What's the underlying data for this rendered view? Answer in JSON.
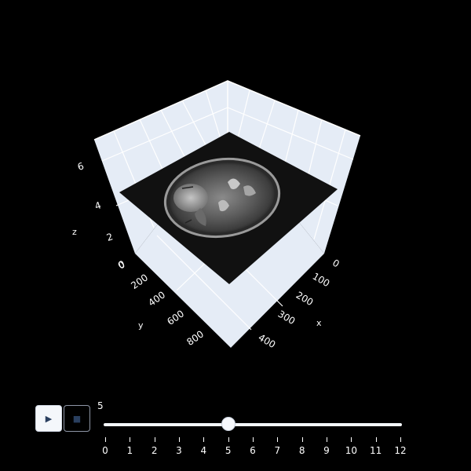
{
  "scene": {
    "axes": {
      "x": {
        "title": "x",
        "ticks": [
          "0",
          "100",
          "200",
          "300",
          "400"
        ]
      },
      "y": {
        "title": "y",
        "ticks": [
          "0",
          "200",
          "400",
          "600",
          "800"
        ]
      },
      "z": {
        "title": "z",
        "ticks": [
          "0",
          "2",
          "4",
          "6"
        ]
      }
    },
    "colors": {
      "background": "#000000",
      "pane": "#e5ecf6",
      "grid": "#ffffff",
      "slice": "#111111"
    }
  },
  "animation": {
    "play_icon": "▶",
    "stop_icon": "■",
    "current_frame": "5",
    "steps": [
      "0",
      "1",
      "2",
      "3",
      "4",
      "5",
      "6",
      "7",
      "8",
      "9",
      "10",
      "11",
      "12"
    ],
    "current_index": 5
  }
}
